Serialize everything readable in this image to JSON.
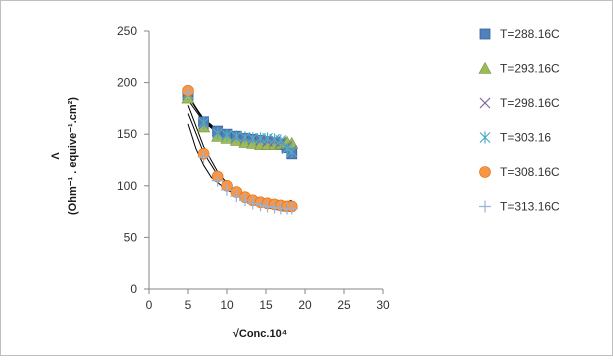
{
  "chart_data": {
    "type": "scatter",
    "title": "",
    "xlabel": "√Conc.10⁴",
    "ylabel_symbol": "Λ",
    "ylabel_units": "(Ohm⁻¹ . equive⁻¹.cm²)",
    "xlim": [
      0,
      30
    ],
    "ylim": [
      0,
      250
    ],
    "xticks": [
      0,
      5,
      10,
      15,
      20,
      25,
      30
    ],
    "yticks": [
      0,
      50,
      100,
      150,
      200,
      250
    ],
    "grid": false,
    "legend_position": "right",
    "trendline_color": "#000000",
    "series": [
      {
        "name": "T=288.16C",
        "marker": "square",
        "color": "#4f81bd",
        "points": [
          [
            5.0,
            188
          ],
          [
            7.0,
            162
          ],
          [
            8.8,
            153
          ],
          [
            10.0,
            150
          ],
          [
            11.2,
            148
          ],
          [
            12.3,
            146
          ],
          [
            13.3,
            145
          ],
          [
            14.3,
            144
          ],
          [
            15.2,
            143
          ],
          [
            16.1,
            142
          ],
          [
            16.9,
            140
          ],
          [
            17.7,
            137
          ],
          [
            18.3,
            131
          ]
        ]
      },
      {
        "name": "T=293.16C",
        "marker": "triangle",
        "color": "#9bbb59",
        "points": [
          [
            5.0,
            185
          ],
          [
            7.0,
            157
          ],
          [
            8.8,
            148
          ],
          [
            10.0,
            146
          ],
          [
            11.2,
            144
          ],
          [
            12.3,
            142
          ],
          [
            13.3,
            141
          ],
          [
            14.3,
            140
          ],
          [
            15.2,
            140
          ],
          [
            16.1,
            140
          ],
          [
            16.9,
            141
          ],
          [
            17.7,
            142
          ],
          [
            18.3,
            141
          ]
        ]
      },
      {
        "name": "T=298.16C",
        "marker": "x",
        "color": "#8064a2",
        "points": [
          [
            5.0,
            190
          ],
          [
            7.0,
            160
          ],
          [
            8.8,
            152
          ],
          [
            10.0,
            149
          ],
          [
            11.2,
            147
          ],
          [
            12.3,
            146
          ],
          [
            13.3,
            145
          ],
          [
            14.3,
            144
          ],
          [
            15.2,
            143
          ],
          [
            16.1,
            143
          ],
          [
            16.9,
            142
          ],
          [
            17.7,
            138
          ],
          [
            18.3,
            134
          ]
        ]
      },
      {
        "name": "T=303.16",
        "marker": "asterisk",
        "color": "#4bacc6",
        "points": [
          [
            5.0,
            189
          ],
          [
            7.0,
            161
          ],
          [
            8.8,
            151
          ],
          [
            10.0,
            149
          ],
          [
            11.2,
            148
          ],
          [
            12.3,
            147
          ],
          [
            13.3,
            146
          ],
          [
            14.3,
            146
          ],
          [
            15.2,
            146
          ],
          [
            16.1,
            145
          ],
          [
            16.9,
            144
          ],
          [
            17.7,
            136
          ],
          [
            18.3,
            133
          ]
        ]
      },
      {
        "name": "T=308.16C",
        "marker": "circle",
        "color": "#f79646",
        "points": [
          [
            5.0,
            192
          ],
          [
            7.0,
            131
          ],
          [
            8.8,
            109
          ],
          [
            10.0,
            100
          ],
          [
            11.2,
            94
          ],
          [
            12.3,
            89
          ],
          [
            13.3,
            86
          ],
          [
            14.3,
            84
          ],
          [
            15.2,
            83
          ],
          [
            16.1,
            82
          ],
          [
            16.9,
            81
          ],
          [
            17.7,
            80
          ],
          [
            18.3,
            80
          ]
        ]
      },
      {
        "name": "T=313.16C",
        "marker": "plus",
        "color": "#95b3d7",
        "points": [
          [
            5.0,
            190
          ],
          [
            7.0,
            128
          ],
          [
            8.8,
            105
          ],
          [
            10.0,
            96
          ],
          [
            11.2,
            90
          ],
          [
            12.3,
            86
          ],
          [
            13.3,
            83
          ],
          [
            14.3,
            81
          ],
          [
            15.2,
            80
          ],
          [
            16.1,
            79
          ],
          [
            16.9,
            78
          ],
          [
            17.7,
            78
          ],
          [
            18.3,
            78
          ]
        ]
      }
    ],
    "trendlines": [
      {
        "points": [
          [
            5.0,
            186
          ],
          [
            7.0,
            165
          ],
          [
            9.0,
            153
          ],
          [
            11.0,
            146
          ],
          [
            13.0,
            141
          ],
          [
            15.0,
            139
          ],
          [
            17.0,
            138
          ],
          [
            18.3,
            140
          ]
        ]
      },
      {
        "points": [
          [
            5.0,
            183
          ],
          [
            7.0,
            162
          ],
          [
            9.0,
            150
          ],
          [
            11.0,
            143
          ],
          [
            13.0,
            139
          ],
          [
            15.0,
            137
          ],
          [
            17.0,
            137
          ],
          [
            18.3,
            138
          ]
        ]
      },
      {
        "points": [
          [
            5.0,
            188
          ],
          [
            7.0,
            164
          ],
          [
            9.0,
            152
          ],
          [
            11.0,
            146
          ],
          [
            13.0,
            143
          ],
          [
            15.0,
            141
          ],
          [
            17.0,
            141
          ],
          [
            18.3,
            143
          ]
        ]
      },
      {
        "points": [
          [
            5.0,
            187
          ],
          [
            7.0,
            163
          ],
          [
            9.0,
            151
          ],
          [
            11.0,
            145
          ],
          [
            13.0,
            142
          ],
          [
            15.0,
            140
          ],
          [
            17.0,
            140
          ],
          [
            18.3,
            142
          ]
        ]
      },
      {
        "points": [
          [
            5.0,
            170
          ],
          [
            7.0,
            132
          ],
          [
            9.0,
            108
          ],
          [
            11.0,
            94
          ],
          [
            13.0,
            86
          ],
          [
            15.0,
            82
          ],
          [
            17.0,
            82
          ],
          [
            18.3,
            86
          ]
        ]
      },
      {
        "points": [
          [
            5.0,
            160
          ],
          [
            6.0,
            136
          ],
          [
            7.0,
            120
          ],
          [
            8.0,
            108
          ],
          [
            10.0,
            96
          ],
          [
            12.0,
            89
          ],
          [
            14.0,
            84
          ],
          [
            16.0,
            80
          ],
          [
            18.3,
            76
          ]
        ]
      },
      {
        "points": [
          [
            5.0,
            178
          ],
          [
            7.0,
            138
          ],
          [
            9.0,
            111
          ],
          [
            11.0,
            95
          ],
          [
            13.0,
            85
          ],
          [
            15.0,
            79
          ],
          [
            17.0,
            76
          ],
          [
            18.3,
            75
          ]
        ]
      }
    ]
  }
}
